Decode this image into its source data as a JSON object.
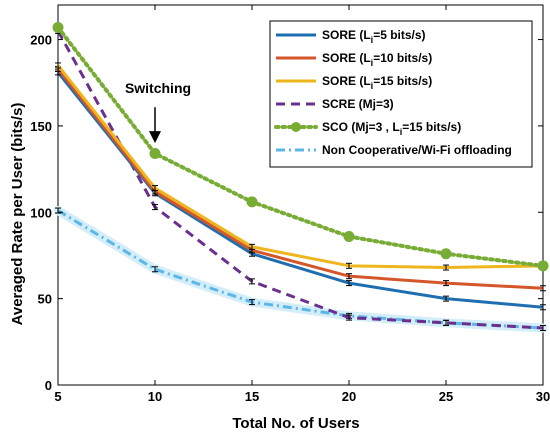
{
  "chart_data": {
    "type": "line",
    "xlabel": "Total No. of Users",
    "ylabel": "Averaged  Rate per User (bits/s)",
    "xlim": [
      5,
      30
    ],
    "ylim": [
      0,
      220
    ],
    "xticks": [
      5,
      10,
      15,
      20,
      25,
      30
    ],
    "yticks": [
      0,
      50,
      100,
      150,
      200
    ],
    "grid": false,
    "legend_position": "top-right",
    "x": [
      5,
      10,
      15,
      20,
      25,
      30
    ],
    "series": [
      {
        "id": "sore5",
        "name": "SORE (L",
        "sub": "i",
        "suffix": "=5 bits/s)",
        "color": "#1f6fb0",
        "dash": "solid",
        "marker": "none",
        "error_bars": true,
        "values": [
          181,
          111,
          76,
          59,
          50,
          45
        ]
      },
      {
        "id": "sore10",
        "name": "SORE (L",
        "sub": "i",
        "suffix": "=10 bits/s)",
        "color": "#d4562b",
        "dash": "solid",
        "marker": "none",
        "error_bars": true,
        "values": [
          183,
          112,
          78,
          63,
          59,
          56
        ]
      },
      {
        "id": "sore15",
        "name": "SORE (L",
        "sub": "i",
        "suffix": "=15 bits/s)",
        "color": "#efb51c",
        "dash": "solid",
        "marker": "none",
        "error_bars": true,
        "values": [
          185,
          114,
          80,
          69,
          68,
          69
        ]
      },
      {
        "id": "scre",
        "name": "SCRE (Mj=3)",
        "sub": "",
        "suffix": "",
        "color": "#6b2f8e",
        "dash": "dashed",
        "marker": "none",
        "error_bars": true,
        "values": [
          205,
          103,
          60,
          39,
          36,
          33
        ]
      },
      {
        "id": "sco",
        "name": "SCO (Mj=3 , L",
        "sub": "i",
        "suffix": "=15 bits/s)",
        "color": "#78ac35",
        "dash": "dotted",
        "marker": "circle",
        "error_bars": true,
        "values": [
          207,
          134,
          106,
          86,
          76,
          69
        ]
      },
      {
        "id": "noncoop",
        "name": "Non Cooperative/Wi-Fi offloading",
        "sub": "",
        "suffix": "",
        "color": "#5cb7e8",
        "dash": "dashdot",
        "marker": "none",
        "error_bars": true,
        "values": [
          101,
          67,
          48,
          40,
          36,
          33
        ]
      }
    ],
    "annotations": [
      {
        "text": "Switching",
        "arrow_to_x": 10,
        "arrow_to_y": 140
      }
    ]
  }
}
